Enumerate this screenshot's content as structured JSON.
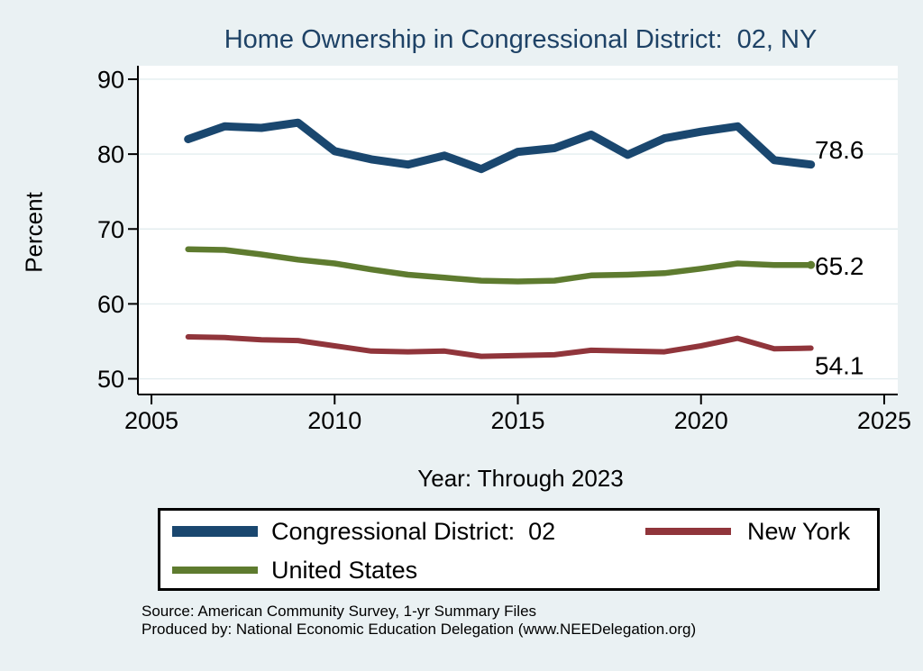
{
  "page": {
    "background": "#eaf1f3",
    "plot_background": "#ffffff"
  },
  "title": {
    "text": "Home Ownership in Congressional District:  02, NY",
    "color": "#1e4266"
  },
  "chart_data": {
    "type": "line",
    "title": "Home Ownership in Congressional District:  02, NY",
    "xlabel": "Year: Through 2023",
    "ylabel": "Percent",
    "x": [
      2006,
      2007,
      2008,
      2009,
      2010,
      2011,
      2012,
      2013,
      2014,
      2015,
      2016,
      2017,
      2018,
      2019,
      2020,
      2021,
      2022,
      2023
    ],
    "series": [
      {
        "name": "Congressional District:  02",
        "color": "#1a476f",
        "stroke_width": 9,
        "values": [
          82.0,
          83.7,
          83.5,
          84.2,
          80.4,
          79.3,
          78.6,
          79.8,
          78.0,
          80.3,
          80.8,
          82.6,
          79.9,
          82.1,
          83.0,
          83.7,
          79.2,
          78.6
        ],
        "end_label": "78.6",
        "end_marker": false
      },
      {
        "name": "United States",
        "color": "#5e7b2f",
        "stroke_width": 6.5,
        "values": [
          67.3,
          67.2,
          66.6,
          65.9,
          65.4,
          64.6,
          63.9,
          63.5,
          63.1,
          63.0,
          63.1,
          63.8,
          63.9,
          64.1,
          64.7,
          65.4,
          65.2,
          65.2
        ],
        "end_label": "65.2",
        "end_marker": true
      },
      {
        "name": "New York",
        "color": "#90353b",
        "stroke_width": 6,
        "values": [
          55.6,
          55.5,
          55.2,
          55.1,
          54.4,
          53.7,
          53.6,
          53.7,
          53.0,
          53.1,
          53.2,
          53.8,
          53.7,
          53.6,
          54.4,
          55.4,
          54.0,
          54.1
        ],
        "end_label": "54.1",
        "end_marker": false
      }
    ],
    "xticks": [
      2005,
      2010,
      2015,
      2020,
      2025
    ],
    "yticks": [
      50,
      60,
      70,
      80,
      90
    ],
    "xlim": [
      2004.63,
      2025.37
    ],
    "ylim": [
      47.9,
      91.8
    ],
    "grid": "horizontal",
    "gridline_color": "#e3edef",
    "legend_position": "bottom"
  },
  "legend": {
    "items": [
      {
        "label": "Congressional District:  02",
        "color": "#1a476f"
      },
      {
        "label": "New York",
        "color": "#90353b"
      },
      {
        "label": "United States",
        "color": "#5e7b2f"
      }
    ]
  },
  "source": {
    "line1": "Source: American Community Survey, 1-yr Summary Files",
    "line2": "Produced by: National Economic Education Delegation (www.NEEDelegation.org)"
  }
}
